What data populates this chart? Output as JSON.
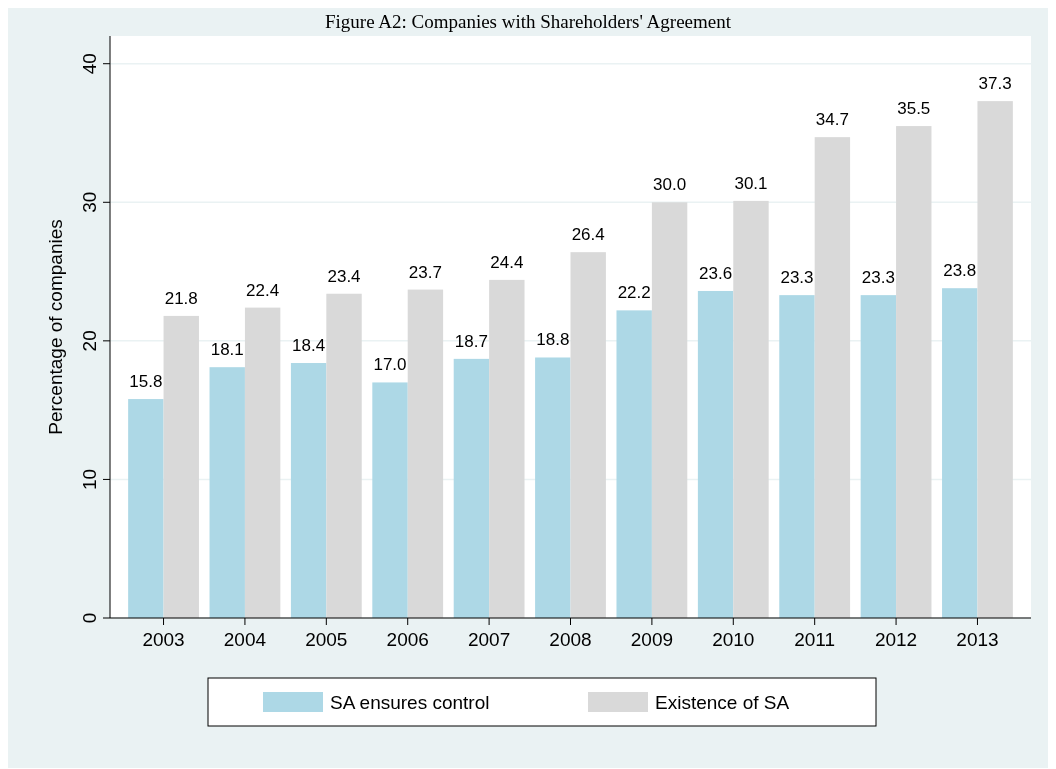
{
  "chart_data": {
    "type": "bar",
    "title": "Figure A2: Companies with Shareholders' Agreement",
    "ylabel": "Percentage of companies",
    "categories": [
      "2003",
      "2004",
      "2005",
      "2006",
      "2007",
      "2008",
      "2009",
      "2010",
      "2011",
      "2012",
      "2013"
    ],
    "series": [
      {
        "name": "SA ensures control",
        "color": "#add8e6",
        "values": [
          15.8,
          18.1,
          18.4,
          17.0,
          18.7,
          18.8,
          22.2,
          23.6,
          23.3,
          23.3,
          23.8
        ],
        "value_labels": [
          "15.8",
          "18.1",
          "18.4",
          "17.0",
          "18.7",
          "18.8",
          "22.2",
          "23.6",
          "23.3",
          "23.3",
          "23.8"
        ]
      },
      {
        "name": "Existence of SA",
        "color": "#d9d9d9",
        "values": [
          21.8,
          22.4,
          23.4,
          23.7,
          24.4,
          26.4,
          30.0,
          30.1,
          34.7,
          35.5,
          37.3
        ],
        "value_labels": [
          "21.8",
          "22.4",
          "23.4",
          "23.7",
          "24.4",
          "26.4",
          "30.0",
          "30.1",
          "34.7",
          "35.5",
          "37.3"
        ]
      }
    ],
    "ylim": [
      0,
      42
    ],
    "yticks": [
      0,
      10,
      20,
      30,
      40
    ],
    "grid": "y",
    "legend": "bottom"
  }
}
